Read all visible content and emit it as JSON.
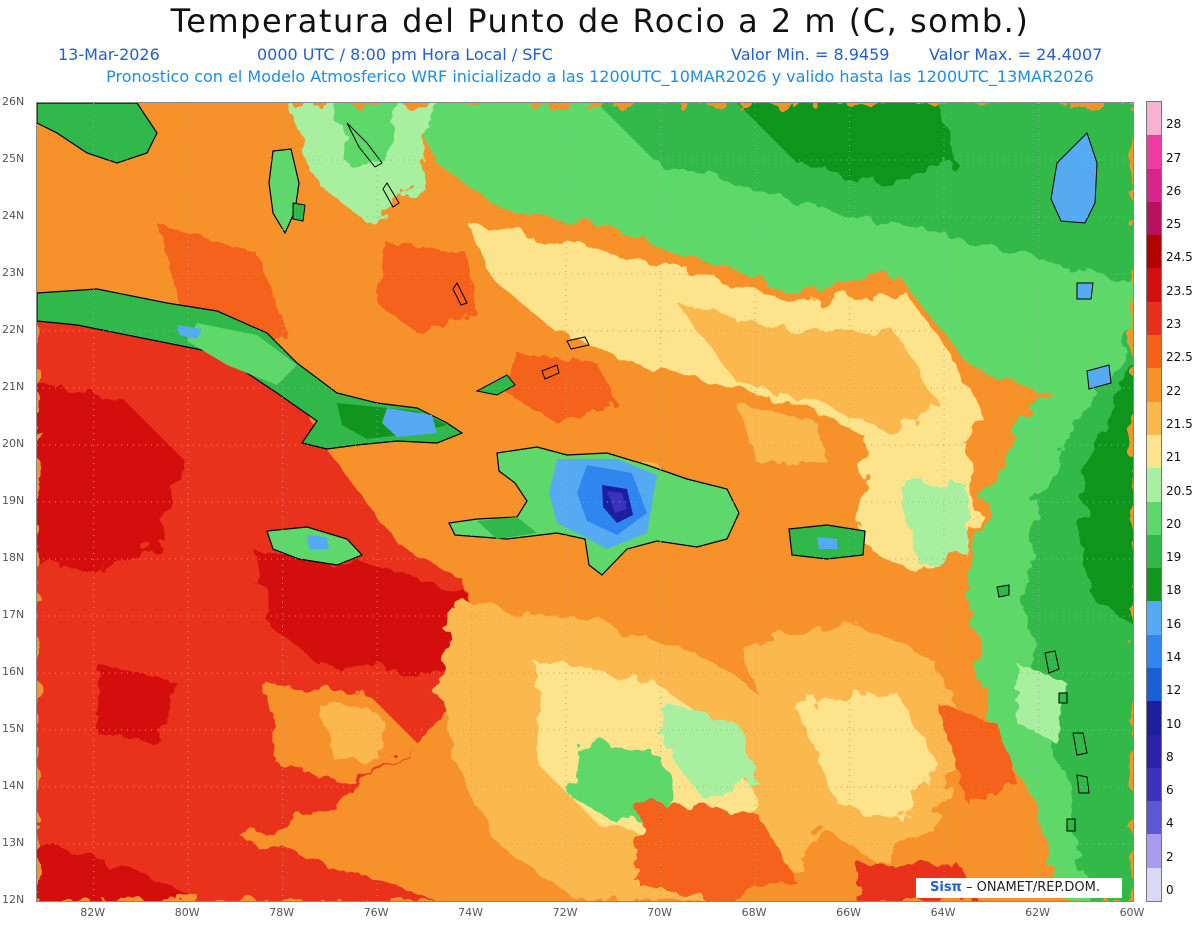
{
  "header": {
    "title": "Temperatura del Punto de Rocio a 2 m (C, somb.)",
    "date": "13-Mar-2026",
    "time": "0000 UTC / 8:00 pm Hora Local / SFC",
    "min": "Valor Min. = 8.9459",
    "max": "Valor Max. = 24.4007",
    "model_line": "Pronostico con el Modelo Atmosferico WRF inicializado a las 1200UTC_10MAR2026 y valido hasta las  1200UTC_13MAR2026"
  },
  "map": {
    "lon_range": [
      -83.2,
      -60
    ],
    "lat_range": [
      12,
      26
    ],
    "lat_labels": [
      "26N",
      "25N",
      "24N",
      "23N",
      "22N",
      "21N",
      "20N",
      "19N",
      "18N",
      "17N",
      "16N",
      "15N",
      "14N",
      "13N",
      "12N"
    ],
    "lon_labels": [
      "82W",
      "80W",
      "78W",
      "76W",
      "74W",
      "72W",
      "70W",
      "68W",
      "66W",
      "64W",
      "62W",
      "60W"
    ],
    "dotted_grid": true
  },
  "colorbar": {
    "labels": [
      "28",
      "27",
      "26",
      "25",
      "24.5",
      "23.5",
      "23",
      "22.5",
      "22",
      "21.5",
      "21",
      "20.5",
      "20",
      "19",
      "18",
      "16",
      "14",
      "12",
      "10",
      "8",
      "6",
      "4",
      "2",
      "0"
    ],
    "colors": [
      "#f6b3d3",
      "#ee3aa3",
      "#d9258b",
      "#b8125e",
      "#b30000",
      "#d40f0f",
      "#e8311d",
      "#f4621a",
      "#f7922b",
      "#fbb84f",
      "#fde38c",
      "#a8f0a0",
      "#5ed86a",
      "#30b94a",
      "#11951f",
      "#56aaf2",
      "#2f86ee",
      "#1a5fd4",
      "#1c1f9e",
      "#2b22a8",
      "#3a32bc",
      "#5a58d4",
      "#a89bf0",
      "#d9d9f6"
    ]
  },
  "footer": {
    "logo_sis": "Sisπ",
    "logo_org": "– ONAMET/REP.DOM."
  }
}
